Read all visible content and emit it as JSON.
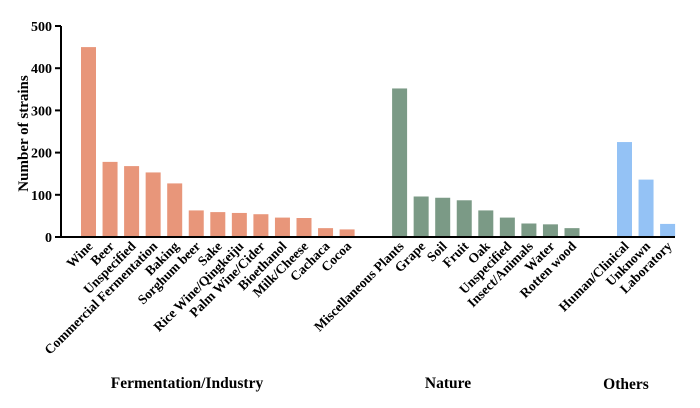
{
  "chart_data": {
    "type": "bar",
    "title": "",
    "xlabel": "",
    "ylabel": "Number of strains",
    "ylim": [
      0,
      500
    ],
    "yticks": [
      0,
      100,
      200,
      300,
      400,
      500
    ],
    "grid": false,
    "legend": "none",
    "groups": [
      {
        "name": "Fermentation/Industry",
        "color": "#E8967A",
        "categories": [
          "Wine",
          "Beer",
          "Unspecified",
          "Commercial Fermentation",
          "Baking",
          "Sorghum beer",
          "Sake",
          "Rice Wine/Qingkeiju",
          "Palm Wine/Cider",
          "Bioethanol",
          "Milk/Cheese",
          "Cachaca",
          "Cocoa"
        ],
        "values": [
          450,
          178,
          168,
          153,
          127,
          63,
          59,
          57,
          54,
          46,
          45,
          21,
          18
        ]
      },
      {
        "name": "Nature",
        "color": "#7B9A86",
        "categories": [
          "Miscellaneous Plants",
          "Grape",
          "Soil",
          "Fruit",
          "Oak",
          "Unspecified",
          "Insect/Animals",
          "Water",
          "Rotten wood"
        ],
        "values": [
          352,
          96,
          93,
          87,
          63,
          46,
          32,
          30,
          21
        ]
      },
      {
        "name": "Others",
        "color": "#94C2F5",
        "categories": [
          "Human/Clinical",
          "Unknown",
          "Laboratory"
        ],
        "values": [
          225,
          136,
          31
        ]
      }
    ]
  }
}
